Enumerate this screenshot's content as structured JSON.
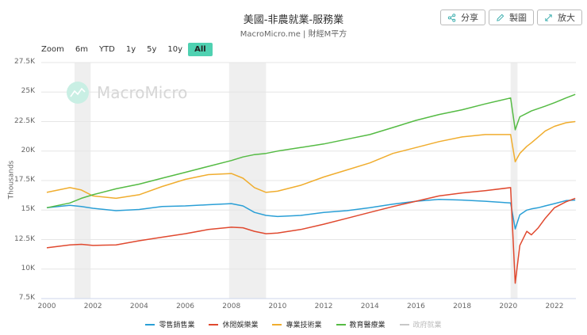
{
  "header": {
    "title": "美國-非農就業-服務業",
    "subtitle": "MacroMicro.me | 財經M平方"
  },
  "actions": [
    {
      "label": "分享",
      "icon": "share-icon"
    },
    {
      "label": "製圖",
      "icon": "pencil-icon"
    },
    {
      "label": "放大",
      "icon": "expand-icon"
    }
  ],
  "zoom": {
    "label": "Zoom",
    "options": [
      "6m",
      "YTD",
      "1y",
      "5y",
      "10y",
      "All"
    ],
    "selected": "All"
  },
  "watermark": "MacroMicro",
  "colors": {
    "retail": "#2a9fd6",
    "leisure": "#e0492f",
    "professional": "#f0ad2e",
    "education_health": "#55bb44",
    "government": "#c8c8c8",
    "accent": "#4fd1b1",
    "recession": "#efefef"
  },
  "chart_data": {
    "type": "line",
    "title": "美國-非農就業-服務業",
    "subtitle": "MacroMicro.me | 財經M平方",
    "xlabel": "",
    "ylabel": "Thousands",
    "ylim": [
      7500,
      27500
    ],
    "xlim": [
      2000,
      2022.9
    ],
    "y_ticks": [
      "7.5K",
      "10K",
      "12.5K",
      "15K",
      "17.5K",
      "20K",
      "22.5K",
      "25K",
      "27.5K"
    ],
    "x_ticks": [
      "2000",
      "2002",
      "2004",
      "2006",
      "2008",
      "2010",
      "2012",
      "2014",
      "2016",
      "2018",
      "2020",
      "2022"
    ],
    "grid": true,
    "legend_position": "bottom",
    "recession_bands": [
      [
        2001.2,
        2001.9
      ],
      [
        2007.9,
        2009.5
      ],
      [
        2020.1,
        2020.4
      ]
    ],
    "x": [
      2000,
      2001,
      2001.5,
      2002,
      2003,
      2004,
      2005,
      2006,
      2007,
      2008,
      2008.5,
      2009,
      2009.5,
      2010,
      2011,
      2012,
      2013,
      2014,
      2015,
      2016,
      2017,
      2018,
      2019,
      2020.1,
      2020.3,
      2020.5,
      2020.8,
      2021,
      2021.3,
      2021.6,
      2022,
      2022.5,
      2022.9
    ],
    "series": [
      {
        "name": "零售銷售業",
        "color": "#2a9fd6",
        "values": [
          15200,
          15400,
          15300,
          15150,
          14950,
          15050,
          15300,
          15350,
          15450,
          15550,
          15350,
          14800,
          14550,
          14450,
          14550,
          14800,
          14950,
          15200,
          15500,
          15750,
          15900,
          15850,
          15750,
          15600,
          13400,
          14600,
          15000,
          15100,
          15200,
          15350,
          15550,
          15800,
          15850
        ]
      },
      {
        "name": "休閒娛樂業",
        "color": "#e0492f",
        "values": [
          11800,
          12050,
          12100,
          12000,
          12050,
          12400,
          12700,
          13000,
          13350,
          13550,
          13500,
          13200,
          13000,
          13050,
          13350,
          13800,
          14300,
          14800,
          15300,
          15750,
          16200,
          16450,
          16650,
          16900,
          8800,
          12000,
          13200,
          12900,
          13500,
          14300,
          15200,
          15700,
          16000
        ]
      },
      {
        "name": "專業技術業",
        "color": "#f0ad2e",
        "values": [
          16500,
          16900,
          16700,
          16200,
          16000,
          16300,
          17000,
          17600,
          18000,
          18100,
          17700,
          16900,
          16500,
          16600,
          17100,
          17800,
          18400,
          19000,
          19800,
          20300,
          20800,
          21200,
          21400,
          21400,
          19100,
          19800,
          20400,
          20700,
          21200,
          21700,
          22100,
          22400,
          22500
        ]
      },
      {
        "name": "教育醫療業",
        "color": "#55bb44",
        "values": [
          15200,
          15600,
          16000,
          16300,
          16800,
          17200,
          17700,
          18200,
          18700,
          19200,
          19500,
          19700,
          19800,
          20000,
          20300,
          20600,
          21000,
          21400,
          22000,
          22600,
          23100,
          23500,
          24000,
          24500,
          21800,
          22900,
          23200,
          23400,
          23600,
          23800,
          24100,
          24500,
          24800
        ]
      },
      {
        "name": "政府就業",
        "color": "#c8c8c8",
        "visible": false,
        "values": []
      }
    ]
  },
  "legend": [
    {
      "label": "零售銷售業",
      "color": "#2a9fd6",
      "visible": true
    },
    {
      "label": "休閒娛樂業",
      "color": "#e0492f",
      "visible": true
    },
    {
      "label": "專業技術業",
      "color": "#f0ad2e",
      "visible": true
    },
    {
      "label": "教育醫療業",
      "color": "#55bb44",
      "visible": true
    },
    {
      "label": "政府就業",
      "color": "#c8c8c8",
      "visible": false
    }
  ]
}
